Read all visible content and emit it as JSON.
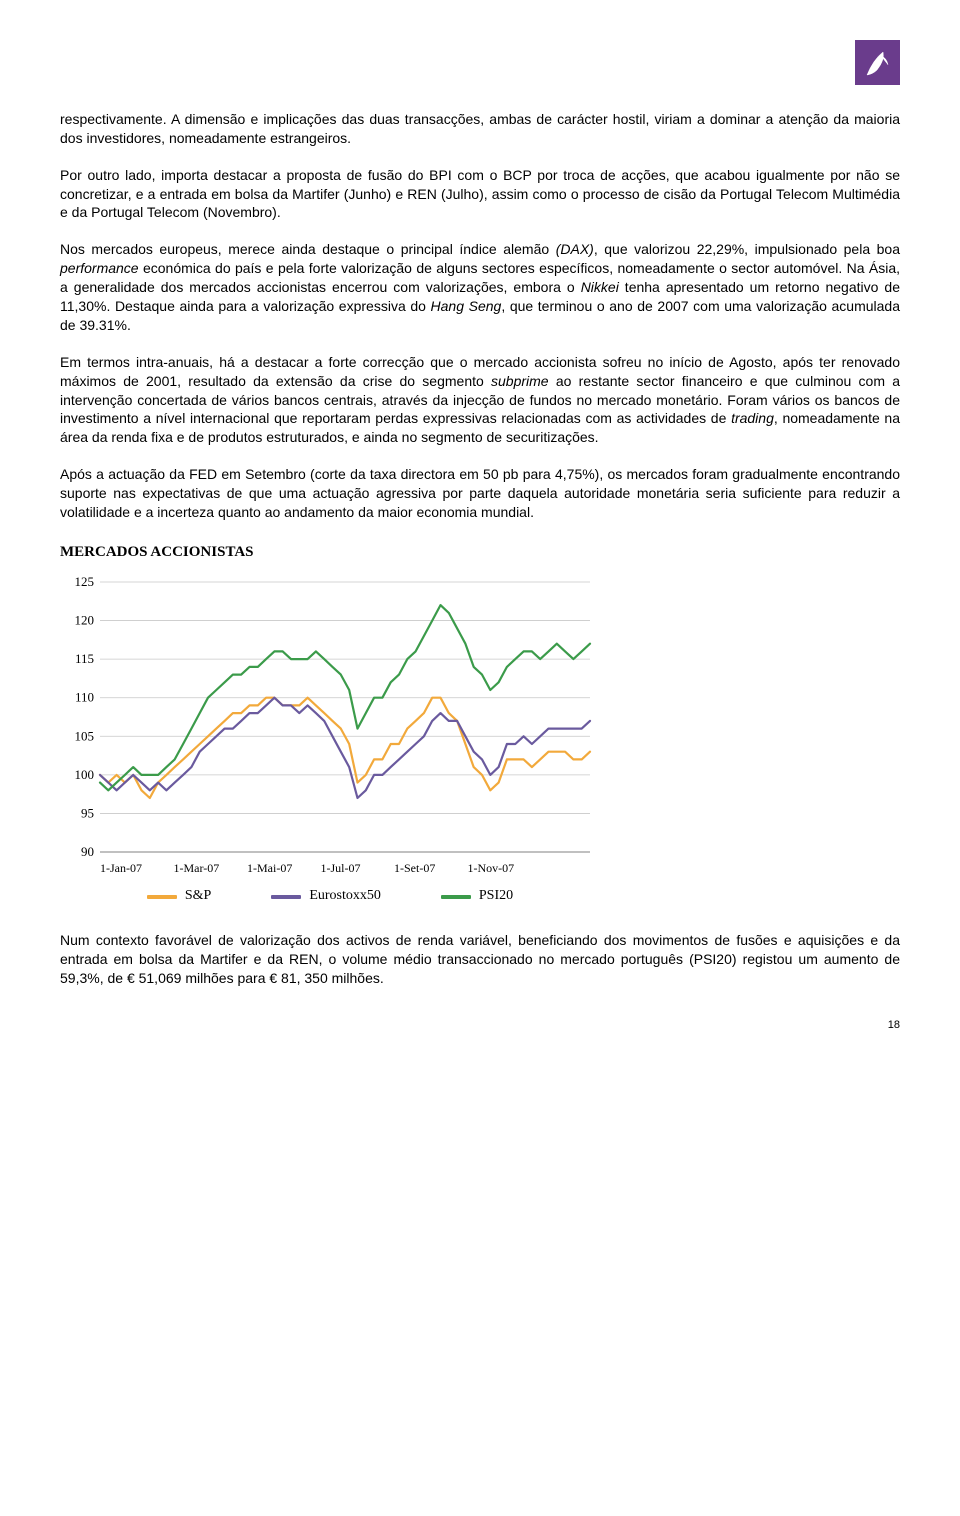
{
  "paragraphs": {
    "p1": "respectivamente. A dimensão e implicações das duas transacções, ambas de carácter hostil, viriam a dominar a atenção da maioria dos investidores, nomeadamente estrangeiros.",
    "p2": "Por outro lado, importa destacar a proposta de fusão do BPI com o BCP por troca de acções, que acabou igualmente por não se concretizar, e a entrada em bolsa da Martifer (Junho) e REN (Julho), assim como o processo de cisão da Portugal Telecom Multimédia e da Portugal Telecom (Novembro).",
    "p3a": "Nos mercados europeus, merece ainda destaque o principal índice alemão ",
    "p3_dax": "(DAX)",
    "p3b": ", que valorizou 22,29%, impulsionado pela boa ",
    "p3_perf": "performance",
    "p3c": " económica do país e pela forte valorização de alguns sectores específicos, nomeadamente o sector automóvel. Na Ásia, a generalidade dos mercados accionistas encerrou com valorizações, embora o ",
    "p3_nikkei": "Nikkei",
    "p3d": " tenha apresentado um retorno negativo de 11,30%. Destaque ainda para a valorização expressiva do ",
    "p3_hs": "Hang Seng",
    "p3e": ", que terminou o ano de 2007 com uma valorização acumulada de 39.31%.",
    "p4a": "Em termos intra-anuais, há a destacar a forte correcção que o mercado accionista sofreu no início de Agosto, após ter renovado máximos de 2001, resultado da extensão da crise do segmento ",
    "p4_sub": "subprime",
    "p4b": " ao restante sector financeiro e que culminou com a intervenção concertada de vários bancos centrais, através da injecção de fundos no mercado monetário. Foram vários os bancos de investimento a nível internacional que reportaram perdas expressivas relacionadas com as actividades de ",
    "p4_tr": "trading",
    "p4c": ", nomeadamente na área da renda fixa e de produtos estruturados, e ainda no segmento de securitizações.",
    "p5": "Após a actuação da FED em Setembro (corte da taxa directora em 50 pb para 4,75%), os mercados foram gradualmente encontrando suporte nas expectativas de que uma actuação agressiva por parte daquela autoridade monetária seria suficiente para reduzir a volatilidade e a incerteza quanto ao andamento da maior economia mundial.",
    "p6": "Num contexto favorável de valorização dos activos de renda variável, beneficiando dos movimentos de fusões e aquisições e da entrada em bolsa da Martifer e da REN, o volume médio transaccionado no mercado português (PSI20) registou um aumento de 59,3%, de € 51,069 milhões para € 81, 350 milhões."
  },
  "chart": {
    "title": "MERCADOS ACCIONISTAS",
    "y_ticks": [
      90,
      95,
      100,
      105,
      110,
      115,
      120,
      125
    ],
    "x_labels": [
      "1-Jan-07",
      "1-Mar-07",
      "1-Mai-07",
      "1-Jul-07",
      "1-Set-07",
      "1-Nov-07"
    ],
    "ylim": [
      90,
      125
    ],
    "x_n_points": 60,
    "colors": {
      "sp": "#f2a93b",
      "euro": "#6a5a9e",
      "psi": "#3b9b4a",
      "grid": "#c8c8c8",
      "axis": "#808080"
    },
    "line_width": 2.2,
    "series": {
      "sp": [
        100,
        99,
        100,
        99,
        100,
        98,
        97,
        99,
        100,
        101,
        102,
        103,
        104,
        105,
        106,
        107,
        108,
        108,
        109,
        109,
        110,
        110,
        109,
        109,
        109,
        110,
        109,
        108,
        107,
        106,
        104,
        99,
        100,
        102,
        102,
        104,
        104,
        106,
        107,
        108,
        110,
        110,
        108,
        107,
        104,
        101,
        100,
        98,
        99,
        102,
        102,
        102,
        101,
        102,
        103,
        103,
        103,
        102,
        102,
        103
      ],
      "euro": [
        100,
        99,
        98,
        99,
        100,
        99,
        98,
        99,
        98,
        99,
        100,
        101,
        103,
        104,
        105,
        106,
        106,
        107,
        108,
        108,
        109,
        110,
        109,
        109,
        108,
        109,
        108,
        107,
        105,
        103,
        101,
        97,
        98,
        100,
        100,
        101,
        102,
        103,
        104,
        105,
        107,
        108,
        107,
        107,
        105,
        103,
        102,
        100,
        101,
        104,
        104,
        105,
        104,
        105,
        106,
        106,
        106,
        106,
        106,
        107
      ],
      "psi": [
        99,
        98,
        99,
        100,
        101,
        100,
        100,
        100,
        101,
        102,
        104,
        106,
        108,
        110,
        111,
        112,
        113,
        113,
        114,
        114,
        115,
        116,
        116,
        115,
        115,
        115,
        116,
        115,
        114,
        113,
        111,
        106,
        108,
        110,
        110,
        112,
        113,
        115,
        116,
        118,
        120,
        122,
        121,
        119,
        117,
        114,
        113,
        111,
        112,
        114,
        115,
        116,
        116,
        115,
        116,
        117,
        116,
        115,
        116,
        117
      ]
    },
    "legend": {
      "sp": "S&P",
      "euro": "Eurostoxx50",
      "psi": "PSI20"
    }
  },
  "page_number": "18"
}
